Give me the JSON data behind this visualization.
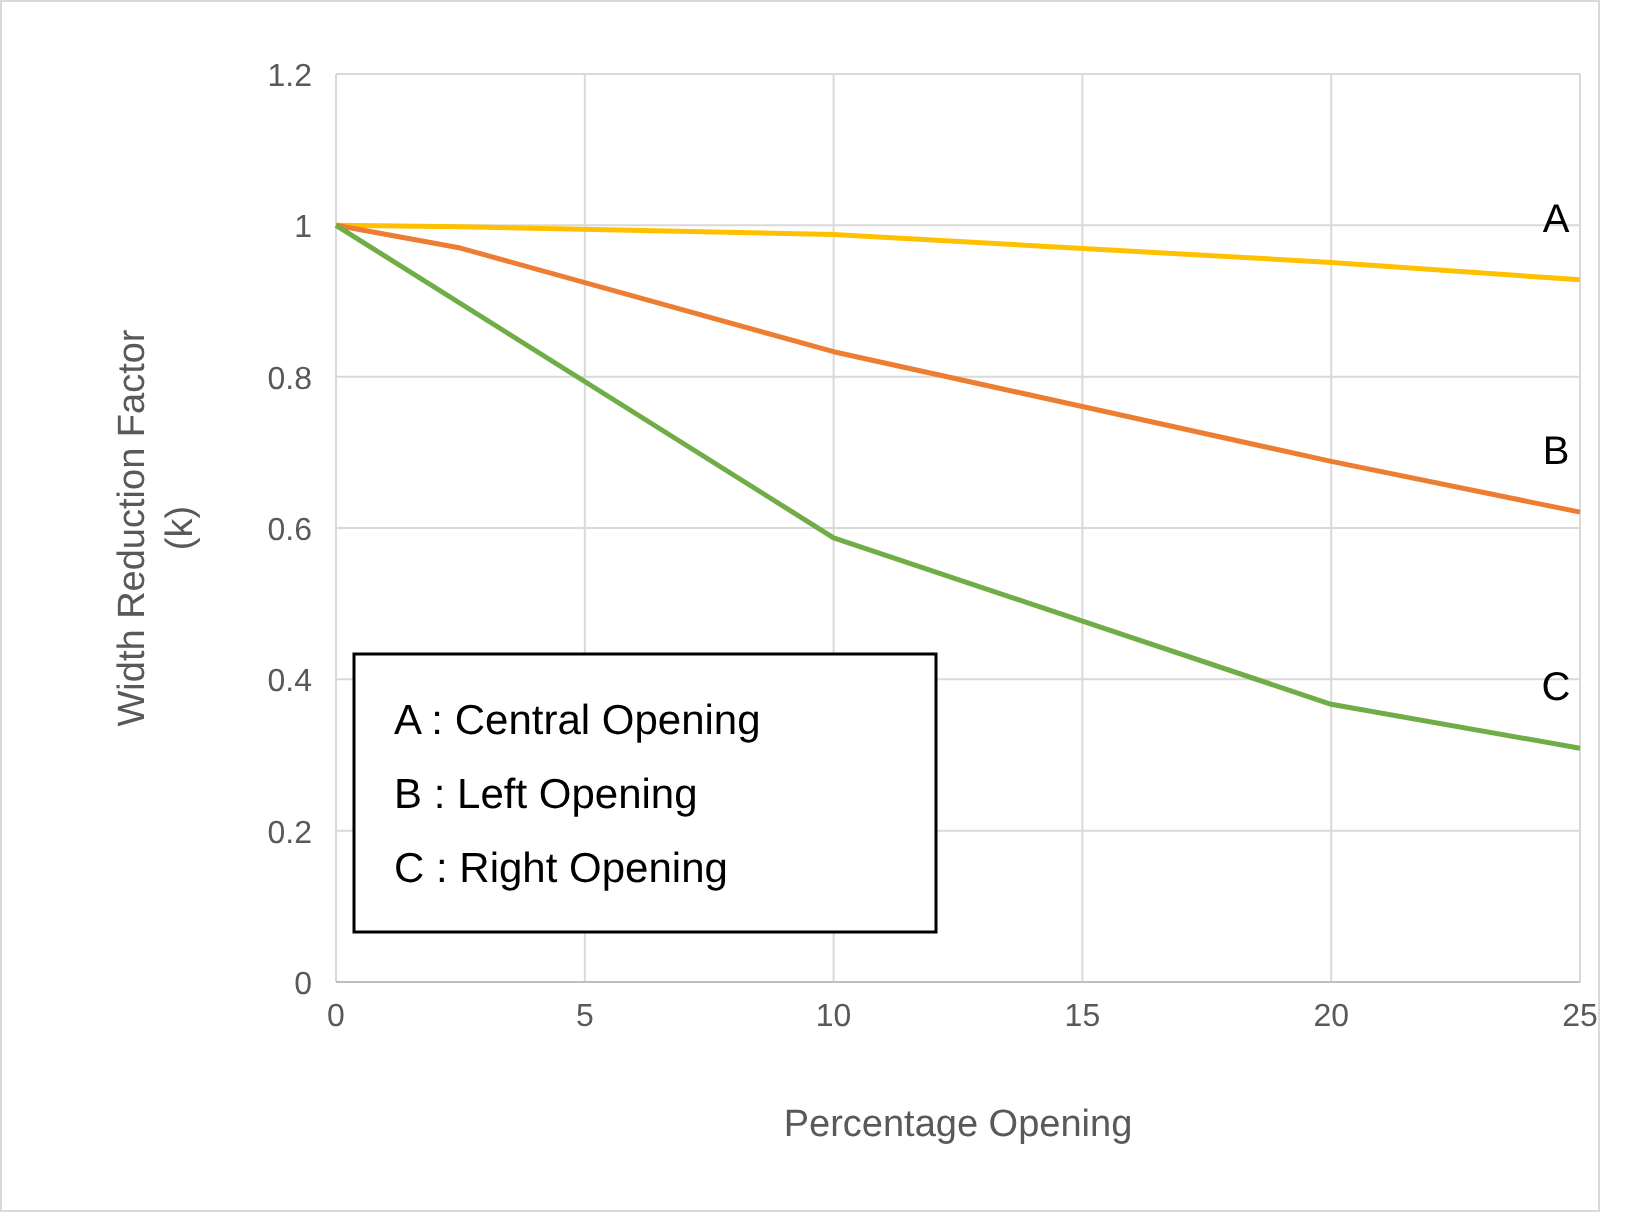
{
  "chart_data": {
    "type": "line",
    "xlabel": "Percentage Opening",
    "ylabel": "Width Reduction Factor (k)",
    "xlim": [
      0,
      25
    ],
    "xticks": [
      0,
      5,
      10,
      15,
      20,
      25
    ],
    "ylim": [
      0,
      1.2
    ],
    "yticks": [
      0,
      0.2,
      0.4,
      0.6,
      0.8,
      1,
      1.2
    ],
    "grid": true,
    "marker": "none",
    "line_style": "solid",
    "series": [
      {
        "name": "A",
        "color": "#ffc000",
        "x": [
          0,
          2.5,
          10,
          20,
          25
        ],
        "values": [
          1,
          0.998,
          0.988,
          0.951,
          0.928
        ]
      },
      {
        "name": "B",
        "color": "#ed7d31",
        "x": [
          0,
          2.5,
          10,
          20,
          25
        ],
        "values": [
          1,
          0.97,
          0.833,
          0.688,
          0.621
        ]
      },
      {
        "name": "C",
        "color": "#70ad47",
        "x": [
          0,
          10,
          20,
          25
        ],
        "values": [
          1,
          0.587,
          0.367,
          0.309
        ]
      }
    ],
    "annotations": [
      "A : Central Opening",
      "B : Left Opening",
      "C : Right Opening"
    ]
  }
}
